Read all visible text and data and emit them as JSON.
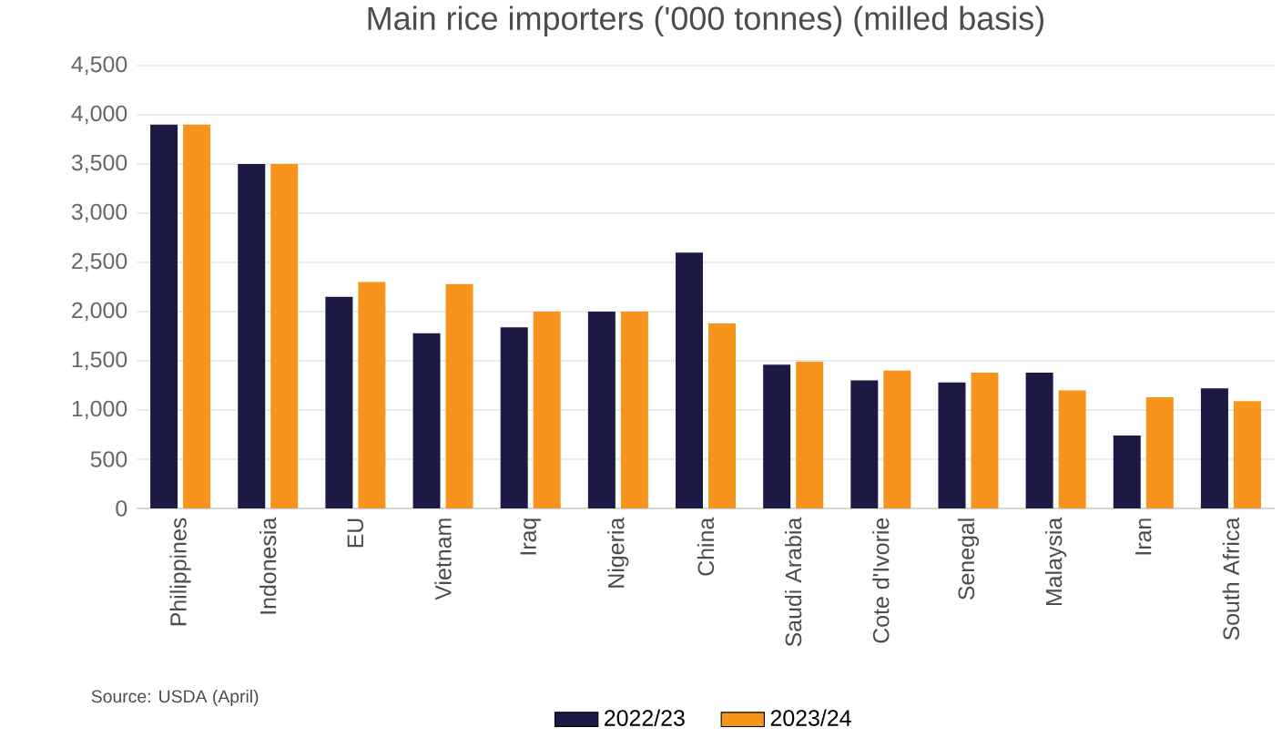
{
  "chart_data": {
    "type": "bar",
    "title": "Main rice importers ('000 tonnes) (milled basis)",
    "categories": [
      "Philippines",
      "Indonesia",
      "EU",
      "Vietnam",
      "Iraq",
      "Nigeria",
      "China",
      "Saudi Arabia",
      "Cote d'Ivorie",
      "Senegal",
      "Malaysia",
      "Iran",
      "South Africa"
    ],
    "series": [
      {
        "name": "2022/23",
        "color": "#1c1a44",
        "values": [
          3900,
          3500,
          2150,
          1780,
          1840,
          2000,
          2600,
          1460,
          1300,
          1280,
          1380,
          740,
          1220
        ]
      },
      {
        "name": "2023/24",
        "color": "#f7941d",
        "values": [
          3900,
          3500,
          2300,
          2280,
          2000,
          2000,
          1880,
          1490,
          1400,
          1380,
          1200,
          1130,
          1090
        ]
      }
    ],
    "ylim": [
      0,
      4500
    ],
    "yticks": [
      {
        "value": 0,
        "label": "0"
      },
      {
        "value": 500,
        "label": "500"
      },
      {
        "value": 1000,
        "label": "1,000"
      },
      {
        "value": 1500,
        "label": "1,500"
      },
      {
        "value": 2000,
        "label": "2,000"
      },
      {
        "value": 2500,
        "label": "2,500"
      },
      {
        "value": 3000,
        "label": "3,000"
      },
      {
        "value": 3500,
        "label": "3,500"
      },
      {
        "value": 4000,
        "label": "4,000"
      },
      {
        "value": 4500,
        "label": "4,500"
      }
    ],
    "grid": "y",
    "legend": "bottom",
    "annotations": [
      "Source: USDA (April)"
    ]
  }
}
